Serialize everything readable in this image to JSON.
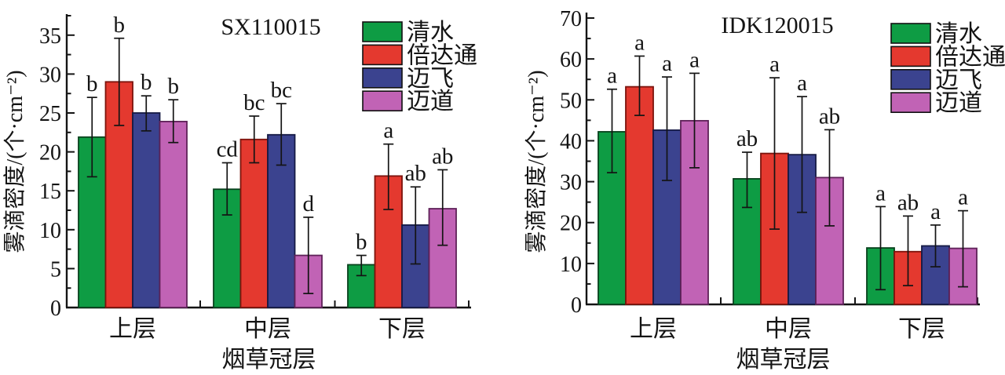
{
  "figure": {
    "background": "#ffffff",
    "error_bar_color": "#141414",
    "axis_color": "#141414"
  },
  "chart_data": [
    {
      "type": "bar",
      "title": "SX110015",
      "xlabel": "烟草冠层",
      "ylabel": "雾滴密度/(个·cm⁻²)",
      "categories": [
        "上层",
        "中层",
        "下层"
      ],
      "ylim": [
        0,
        37.5
      ],
      "ytick_major": 5,
      "ytick_minor": 2.5,
      "grid": false,
      "legend_position": "top-right",
      "series": [
        {
          "name": "清水",
          "color": "#0E9C44",
          "stroke": "#08421D",
          "values": [
            21.9,
            15.2,
            5.5
          ],
          "err_low": [
            16.8,
            11.9,
            4.1
          ],
          "err_high": [
            27.0,
            18.6,
            6.7
          ],
          "letters": [
            "b",
            "cd",
            "b"
          ]
        },
        {
          "name": "倍达通",
          "color": "#E4392F",
          "stroke": "#7C130C",
          "values": [
            29.0,
            21.6,
            16.9
          ],
          "err_low": [
            23.4,
            18.6,
            12.6
          ],
          "err_high": [
            34.6,
            24.6,
            21.0
          ],
          "letters": [
            "b",
            "bc",
            "a"
          ]
        },
        {
          "name": "迈飞",
          "color": "#3B438F",
          "stroke": "#161B45",
          "values": [
            25.0,
            22.2,
            10.6
          ],
          "err_low": [
            22.7,
            18.3,
            5.6
          ],
          "err_high": [
            27.2,
            26.2,
            15.5
          ],
          "letters": [
            "b",
            "bc",
            "ab"
          ]
        },
        {
          "name": "迈道",
          "color": "#C163B5",
          "stroke": "#5E2158",
          "values": [
            23.9,
            6.7,
            12.7
          ],
          "err_low": [
            21.2,
            1.8,
            8.0
          ],
          "err_high": [
            26.7,
            11.6,
            17.7
          ],
          "letters": [
            "b",
            "d",
            "ab"
          ]
        }
      ]
    },
    {
      "type": "bar",
      "title": "IDK120015",
      "xlabel": "烟草冠层",
      "ylabel": "雾滴密度/(个·cm⁻²)",
      "categories": [
        "上层",
        "中层",
        "下层"
      ],
      "ylim": [
        0,
        70
      ],
      "ytick_major": 10,
      "ytick_minor": 5,
      "grid": false,
      "legend_position": "top-right",
      "series": [
        {
          "name": "清水",
          "color": "#0E9C44",
          "stroke": "#08421D",
          "values": [
            42.2,
            30.7,
            13.8
          ],
          "err_low": [
            32.2,
            23.7,
            3.6
          ],
          "err_high": [
            52.6,
            37.2,
            23.9
          ],
          "letters": [
            "a",
            "ab",
            "a"
          ]
        },
        {
          "name": "倍达通",
          "color": "#E4392F",
          "stroke": "#7C130C",
          "values": [
            53.2,
            36.9,
            12.9
          ],
          "err_low": [
            46.2,
            18.4,
            4.6
          ],
          "err_high": [
            60.7,
            55.4,
            21.6
          ],
          "letters": [
            "a",
            "a",
            "ab"
          ]
        },
        {
          "name": "迈飞",
          "color": "#3B438F",
          "stroke": "#161B45",
          "values": [
            42.6,
            36.6,
            14.3
          ],
          "err_low": [
            30.3,
            22.5,
            9.2
          ],
          "err_high": [
            55.6,
            50.8,
            19.4
          ],
          "letters": [
            "a",
            "a",
            "a"
          ]
        },
        {
          "name": "迈道",
          "color": "#C163B5",
          "stroke": "#5E2158",
          "values": [
            44.9,
            31.0,
            13.7
          ],
          "err_low": [
            33.4,
            19.2,
            4.3
          ],
          "err_high": [
            56.5,
            42.7,
            22.9
          ],
          "letters": [
            "a",
            "ab",
            "a"
          ]
        }
      ]
    }
  ]
}
